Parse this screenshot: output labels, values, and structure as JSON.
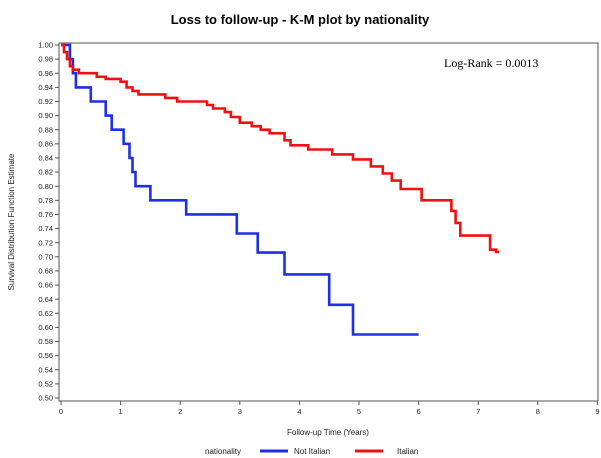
{
  "chart_data": {
    "type": "line",
    "title": "Loss to follow-up - K-M plot by nationality",
    "xlabel": "Follow-up Time (Years)",
    "ylabel": "Survival Distribution Function Estimate",
    "xlim": [
      0,
      9
    ],
    "ylim": [
      0.5,
      1.0
    ],
    "x_ticks": [
      0,
      1,
      2,
      3,
      4,
      5,
      6,
      7,
      8,
      9
    ],
    "y_ticks": [
      0.5,
      0.52,
      0.54,
      0.56,
      0.58,
      0.6,
      0.62,
      0.64,
      0.66,
      0.68,
      0.7,
      0.72,
      0.74,
      0.76,
      0.78,
      0.8,
      0.82,
      0.84,
      0.86,
      0.88,
      0.9,
      0.92,
      0.94,
      0.96,
      0.98,
      1.0
    ],
    "y_tick_labels": [
      "0.50",
      "0.52",
      "0.54",
      "0.56",
      "0.58",
      "0.60",
      "0.62",
      "0.64",
      "0.66",
      "0.68",
      "0.70",
      "0.72",
      "0.74",
      "0.76",
      "0.78",
      "0.80",
      "0.82",
      "0.84",
      "0.86",
      "0.88",
      "0.90",
      "0.92",
      "0.94",
      "0.96",
      "0.98",
      "1.00"
    ],
    "step": true,
    "grid": false,
    "annotation": "Log-Rank = 0.0013",
    "legend_title": "nationality",
    "legend_position": "bottom",
    "series": [
      {
        "name": "Not Italian",
        "color": "#1f2fe6",
        "points": [
          [
            0,
            1.0
          ],
          [
            0.15,
            1.0
          ],
          [
            0.15,
            0.98
          ],
          [
            0.2,
            0.98
          ],
          [
            0.2,
            0.96
          ],
          [
            0.25,
            0.96
          ],
          [
            0.25,
            0.94
          ],
          [
            0.5,
            0.94
          ],
          [
            0.5,
            0.92
          ],
          [
            0.75,
            0.92
          ],
          [
            0.75,
            0.9
          ],
          [
            0.85,
            0.9
          ],
          [
            0.85,
            0.88
          ],
          [
            1.05,
            0.88
          ],
          [
            1.05,
            0.86
          ],
          [
            1.15,
            0.86
          ],
          [
            1.15,
            0.84
          ],
          [
            1.2,
            0.84
          ],
          [
            1.2,
            0.82
          ],
          [
            1.25,
            0.82
          ],
          [
            1.25,
            0.8
          ],
          [
            1.5,
            0.8
          ],
          [
            1.5,
            0.78
          ],
          [
            2.1,
            0.78
          ],
          [
            2.1,
            0.76
          ],
          [
            2.95,
            0.76
          ],
          [
            2.95,
            0.733
          ],
          [
            3.3,
            0.733
          ],
          [
            3.3,
            0.706
          ],
          [
            3.75,
            0.706
          ],
          [
            3.75,
            0.675
          ],
          [
            4.5,
            0.675
          ],
          [
            4.5,
            0.632
          ],
          [
            4.9,
            0.632
          ],
          [
            4.9,
            0.59
          ],
          [
            6.0,
            0.59
          ]
        ]
      },
      {
        "name": "Italian",
        "color": "#ee1111",
        "points": [
          [
            0,
            1.0
          ],
          [
            0.05,
            1.0
          ],
          [
            0.05,
            0.99
          ],
          [
            0.1,
            0.99
          ],
          [
            0.1,
            0.98
          ],
          [
            0.15,
            0.98
          ],
          [
            0.15,
            0.97
          ],
          [
            0.2,
            0.97
          ],
          [
            0.2,
            0.965
          ],
          [
            0.3,
            0.965
          ],
          [
            0.3,
            0.96
          ],
          [
            0.6,
            0.96
          ],
          [
            0.6,
            0.955
          ],
          [
            0.75,
            0.955
          ],
          [
            0.75,
            0.952
          ],
          [
            1.0,
            0.952
          ],
          [
            1.0,
            0.948
          ],
          [
            1.1,
            0.948
          ],
          [
            1.1,
            0.94
          ],
          [
            1.2,
            0.94
          ],
          [
            1.2,
            0.935
          ],
          [
            1.3,
            0.935
          ],
          [
            1.3,
            0.93
          ],
          [
            1.75,
            0.93
          ],
          [
            1.75,
            0.925
          ],
          [
            1.95,
            0.925
          ],
          [
            1.95,
            0.92
          ],
          [
            2.45,
            0.92
          ],
          [
            2.45,
            0.915
          ],
          [
            2.55,
            0.915
          ],
          [
            2.55,
            0.91
          ],
          [
            2.75,
            0.91
          ],
          [
            2.75,
            0.905
          ],
          [
            2.85,
            0.905
          ],
          [
            2.85,
            0.898
          ],
          [
            3.0,
            0.898
          ],
          [
            3.0,
            0.89
          ],
          [
            3.2,
            0.89
          ],
          [
            3.2,
            0.885
          ],
          [
            3.35,
            0.885
          ],
          [
            3.35,
            0.88
          ],
          [
            3.5,
            0.88
          ],
          [
            3.5,
            0.875
          ],
          [
            3.75,
            0.875
          ],
          [
            3.75,
            0.865
          ],
          [
            3.85,
            0.865
          ],
          [
            3.85,
            0.858
          ],
          [
            4.15,
            0.858
          ],
          [
            4.15,
            0.852
          ],
          [
            4.55,
            0.852
          ],
          [
            4.55,
            0.845
          ],
          [
            4.9,
            0.845
          ],
          [
            4.9,
            0.838
          ],
          [
            5.2,
            0.838
          ],
          [
            5.2,
            0.828
          ],
          [
            5.4,
            0.828
          ],
          [
            5.4,
            0.818
          ],
          [
            5.55,
            0.818
          ],
          [
            5.55,
            0.808
          ],
          [
            5.7,
            0.808
          ],
          [
            5.7,
            0.796
          ],
          [
            6.05,
            0.796
          ],
          [
            6.05,
            0.78
          ],
          [
            6.55,
            0.78
          ],
          [
            6.55,
            0.765
          ],
          [
            6.62,
            0.765
          ],
          [
            6.62,
            0.748
          ],
          [
            6.7,
            0.748
          ],
          [
            6.7,
            0.73
          ],
          [
            7.2,
            0.73
          ],
          [
            7.2,
            0.71
          ],
          [
            7.3,
            0.71
          ],
          [
            7.3,
            0.707
          ],
          [
            7.35,
            0.707
          ]
        ]
      }
    ]
  }
}
